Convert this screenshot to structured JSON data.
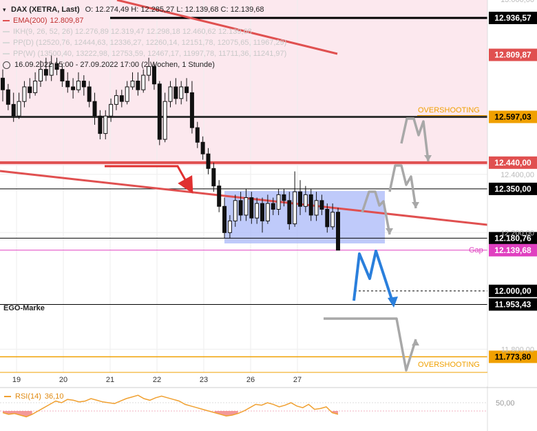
{
  "header": {
    "symbol": "DAX (XETRA, Last)",
    "ohlc": "O: 12.274,49  H: 12.285,27  L: 12.139,68  C: 12.139,68",
    "ema_label": "EMA(200)",
    "ema_value": "12.809,87",
    "ikh": "IKH(9, 26, 52, 26)  12.276,89  12.319,47  12.298,18  12.460,62  12.139,68",
    "ppd": "PP(D)  (12520,76, 12444,63, 12336,27, 12260,14, 12151,78, 12075,65, 11967,29)",
    "ppw": "PP(W)  (13500,40, 13222,98, 12753,59, 12467,17, 11997,78, 11711,36, 11241,97)",
    "range": "16.09.2022 15:00 - 27.09.2022 17:00  (2 Wochen, 1 Stunde)"
  },
  "rsi": {
    "label": "RSI(14)",
    "value": "36,10",
    "level_label": "50,00",
    "values": [
      38,
      36,
      37,
      35,
      33,
      36,
      40,
      44,
      48,
      52,
      50,
      54,
      53,
      51,
      52,
      55,
      53,
      51,
      50,
      49,
      52,
      55,
      57,
      59,
      55,
      53,
      56,
      58,
      56,
      54,
      52,
      48,
      46,
      44,
      42,
      40,
      38,
      36,
      34,
      35,
      37,
      40,
      44,
      48,
      47,
      50,
      48,
      45,
      47,
      50,
      46,
      44,
      48,
      42,
      43,
      45,
      38,
      36
    ]
  },
  "annotations": {
    "overshooting": "OVERSHOOTING",
    "gap": "Gap",
    "ego": "EGO-Marke"
  },
  "colors": {
    "red_line": "#e05050",
    "ema": "#e05050",
    "rsi": "#f0a030",
    "blue_arrow": "#2a7fdc",
    "grey_arrow": "#a8a8a8",
    "box": "#aab8f8",
    "orange": "#f0a000",
    "magenta": "#e040c0",
    "resistance_bg": "#fce8ee"
  },
  "chart_data": {
    "type": "candlestick",
    "x_ticks": [
      "19",
      "20",
      "21",
      "22",
      "23",
      "26",
      "27"
    ],
    "y_ticks": [
      "13.000,00",
      "12.400,00",
      "12.200,00",
      "11.800,00"
    ],
    "ylim": [
      11700,
      13030
    ],
    "levels": [
      {
        "value": 12936.57,
        "label": "12.936,57",
        "color": "#000000"
      },
      {
        "value": 12809.87,
        "label": "12.809,87",
        "color": "#e05050"
      },
      {
        "value": 12597.03,
        "label": "12.597,03",
        "color": "#f0a000"
      },
      {
        "value": 12440.0,
        "label": "12.440,00",
        "color": "#e05050"
      },
      {
        "value": 12350.0,
        "label": "12.350,00",
        "color": "#000000"
      },
      {
        "value": 12180.76,
        "label": "12.180,76",
        "color": "#000000"
      },
      {
        "value": 12139.68,
        "label": "12.139,68",
        "color": "#e040c0"
      },
      {
        "value": 12000.0,
        "label": "12.000,00",
        "color": "#000000"
      },
      {
        "value": 11953.43,
        "label": "11.953,43",
        "color": "#000000"
      },
      {
        "value": 11773.8,
        "label": "11.773,80",
        "color": "#f0a000"
      }
    ],
    "candles": [
      [
        12730,
        12690,
        12760,
        12650
      ],
      [
        12690,
        12640,
        12710,
        12620
      ],
      [
        12640,
        12600,
        12680,
        12580
      ],
      [
        12600,
        12650,
        12680,
        12590
      ],
      [
        12650,
        12700,
        12720,
        12630
      ],
      [
        12700,
        12680,
        12730,
        12660
      ],
      [
        12680,
        12720,
        12750,
        12670
      ],
      [
        12720,
        12760,
        12790,
        12700
      ],
      [
        12760,
        12740,
        12800,
        12720
      ],
      [
        12740,
        12780,
        12810,
        12720
      ],
      [
        12780,
        12760,
        12800,
        12740
      ],
      [
        12760,
        12720,
        12780,
        12700
      ],
      [
        12720,
        12700,
        12750,
        12680
      ],
      [
        12700,
        12690,
        12730,
        12660
      ],
      [
        12690,
        12720,
        12750,
        12680
      ],
      [
        12720,
        12700,
        12740,
        12670
      ],
      [
        12700,
        12650,
        12720,
        12630
      ],
      [
        12650,
        12600,
        12680,
        12570
      ],
      [
        12600,
        12540,
        12620,
        12520
      ],
      [
        12540,
        12600,
        12620,
        12520
      ],
      [
        12600,
        12640,
        12660,
        12580
      ],
      [
        12640,
        12670,
        12690,
        12620
      ],
      [
        12670,
        12650,
        12690,
        12630
      ],
      [
        12650,
        12700,
        12720,
        12640
      ],
      [
        12700,
        12720,
        12750,
        12690
      ],
      [
        12720,
        12690,
        12750,
        12670
      ],
      [
        12690,
        12740,
        12760,
        12680
      ],
      [
        12740,
        12770,
        12800,
        12720
      ],
      [
        12770,
        12710,
        12780,
        12690
      ],
      [
        12710,
        12520,
        12720,
        12500
      ],
      [
        12520,
        12650,
        12680,
        12510
      ],
      [
        12650,
        12700,
        12720,
        12630
      ],
      [
        12700,
        12660,
        12730,
        12640
      ],
      [
        12660,
        12700,
        12720,
        12640
      ],
      [
        12700,
        12680,
        12730,
        12650
      ],
      [
        12680,
        12560,
        12720,
        12540
      ],
      [
        12560,
        12510,
        12580,
        12490
      ],
      [
        12510,
        12470,
        12530,
        12450
      ],
      [
        12470,
        12420,
        12490,
        12400
      ],
      [
        12420,
        12360,
        12440,
        12340
      ],
      [
        12360,
        12290,
        12380,
        12270
      ],
      [
        12290,
        12200,
        12320,
        12180
      ],
      [
        12200,
        12240,
        12260,
        12180
      ],
      [
        12240,
        12310,
        12330,
        12220
      ],
      [
        12310,
        12260,
        12340,
        12240
      ],
      [
        12260,
        12320,
        12350,
        12240
      ],
      [
        12320,
        12250,
        12340,
        12230
      ],
      [
        12250,
        12300,
        12320,
        12230
      ],
      [
        12300,
        12240,
        12320,
        12200
      ],
      [
        12240,
        12300,
        12330,
        12230
      ],
      [
        12300,
        12280,
        12320,
        12260
      ],
      [
        12280,
        12330,
        12350,
        12260
      ],
      [
        12330,
        12310,
        12350,
        12290
      ],
      [
        12310,
        12230,
        12340,
        12210
      ],
      [
        12230,
        12340,
        12410,
        12220
      ],
      [
        12340,
        12290,
        12380,
        12260
      ],
      [
        12290,
        12330,
        12360,
        12270
      ],
      [
        12330,
        12260,
        12350,
        12240
      ],
      [
        12260,
        12310,
        12340,
        12240
      ],
      [
        12310,
        12280,
        12330,
        12260
      ],
      [
        12280,
        12220,
        12300,
        12200
      ],
      [
        12220,
        12270,
        12300,
        12210
      ],
      [
        12270,
        12139.68,
        12285,
        12139.68
      ]
    ]
  }
}
